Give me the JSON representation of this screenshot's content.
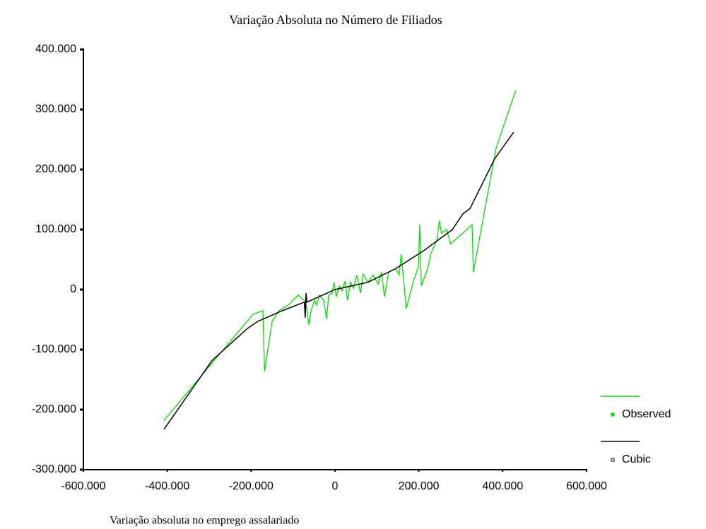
{
  "chart_data": {
    "type": "line",
    "title": "Variação Absoluta no Número de Filiados",
    "x_label": "Variação absoluta no emprego assalariado",
    "xlim": [
      -600000,
      600000
    ],
    "xticks": [
      {
        "value": -600000,
        "label": "-600.000"
      },
      {
        "value": -400000,
        "label": "-400.000"
      },
      {
        "value": -200000,
        "label": "-200.000"
      },
      0,
      {
        "value": 200000,
        "label": "200.000"
      },
      {
        "value": 400000,
        "label": "400.000"
      },
      {
        "value": 600000,
        "label": "600.000"
      }
    ],
    "ylim": [
      -300000,
      400000
    ],
    "yticks": [
      {
        "value": 400000,
        "label": "400.000"
      },
      {
        "value": 300000,
        "label": "300.000"
      },
      {
        "value": 200000,
        "label": "200.000"
      },
      {
        "value": 100000,
        "label": "100.000"
      },
      0,
      {
        "value": -100000,
        "label": "-100.000"
      },
      {
        "value": -200000,
        "label": "-200.000"
      },
      {
        "value": -300000,
        "label": "-300.000"
      }
    ],
    "grid": false,
    "legend": "right",
    "series": [
      {
        "name": "Observed",
        "color": "#00e000",
        "x": [
          -408000,
          -217000,
          -195000,
          -172000,
          -168000,
          -150000,
          -133000,
          -108000,
          -88000,
          -74000,
          -69000,
          -62000,
          -57000,
          -49000,
          -44000,
          -37000,
          -27000,
          -20000,
          -15000,
          -7000,
          -2000,
          3000,
          10000,
          17000,
          24000,
          30000,
          37000,
          44000,
          52000,
          61000,
          67000,
          78000,
          91000,
          103000,
          111000,
          118000,
          128000,
          145000,
          153000,
          158000,
          170000,
          187000,
          199000,
          202000,
          206000,
          221000,
          229000,
          243000,
          249000,
          254000,
          266000,
          276000,
          327000,
          330000,
          384000,
          431000
        ],
        "values": [
          -218000,
          -59000,
          -41000,
          -35000,
          -136000,
          -53000,
          -35000,
          -24000,
          -9000,
          -18000,
          -24000,
          -59000,
          -35000,
          -18000,
          -26000,
          -9000,
          -18000,
          -49000,
          -9000,
          -6000,
          12000,
          -12000,
          6000,
          -2000,
          14000,
          -18000,
          12000,
          2000,
          24000,
          -6000,
          26000,
          12000,
          24000,
          9000,
          29000,
          -12000,
          29000,
          35000,
          24000,
          59000,
          -32000,
          14000,
          38000,
          108000,
          6000,
          35000,
          61000,
          82000,
          115000,
          94000,
          100000,
          76000,
          108000,
          29000,
          235000,
          332000
        ]
      },
      {
        "name": "Cubic",
        "color": "#000000",
        "x": [
          -408000,
          -293000,
          -209000,
          -184000,
          -125000,
          -73000,
          -71000,
          -69000,
          -67000,
          0,
          78000,
          145000,
          212000,
          280000,
          305000,
          322000,
          381000,
          426000
        ],
        "values": [
          -233000,
          -118000,
          -65000,
          -53000,
          -35000,
          -21000,
          -47000,
          -6000,
          -21000,
          0,
          12000,
          35000,
          65000,
          100000,
          126000,
          135000,
          218000,
          262000
        ]
      }
    ]
  }
}
